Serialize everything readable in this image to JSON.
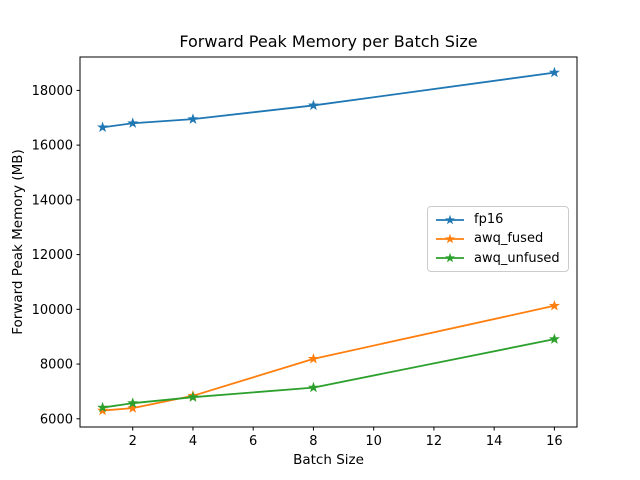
{
  "chart_data": {
    "type": "line",
    "title": "Forward Peak Memory per Batch Size",
    "xlabel": "Batch Size",
    "ylabel": "Forward Peak Memory (MB)",
    "x": [
      1,
      2,
      4,
      8,
      16
    ],
    "series": [
      {
        "name": "fp16",
        "color": "#1f77b4",
        "marker": "star",
        "values": [
          16650,
          16800,
          16950,
          17450,
          18650
        ]
      },
      {
        "name": "awq_fused",
        "color": "#ff7f0e",
        "marker": "star",
        "values": [
          6300,
          6390,
          6840,
          8190,
          10130
        ]
      },
      {
        "name": "awq_unfused",
        "color": "#2ca02c",
        "marker": "star",
        "values": [
          6410,
          6570,
          6790,
          7140,
          8910
        ]
      }
    ],
    "xticks": [
      2,
      4,
      6,
      8,
      10,
      12,
      14,
      16
    ],
    "yticks": [
      6000,
      8000,
      10000,
      12000,
      14000,
      16000,
      18000
    ],
    "xlim": [
      0.25,
      16.75
    ],
    "ylim": [
      5700,
      19220
    ],
    "grid": false,
    "legend_position": "center right",
    "background_color": "#ffffff",
    "spine_color": "#000000"
  }
}
